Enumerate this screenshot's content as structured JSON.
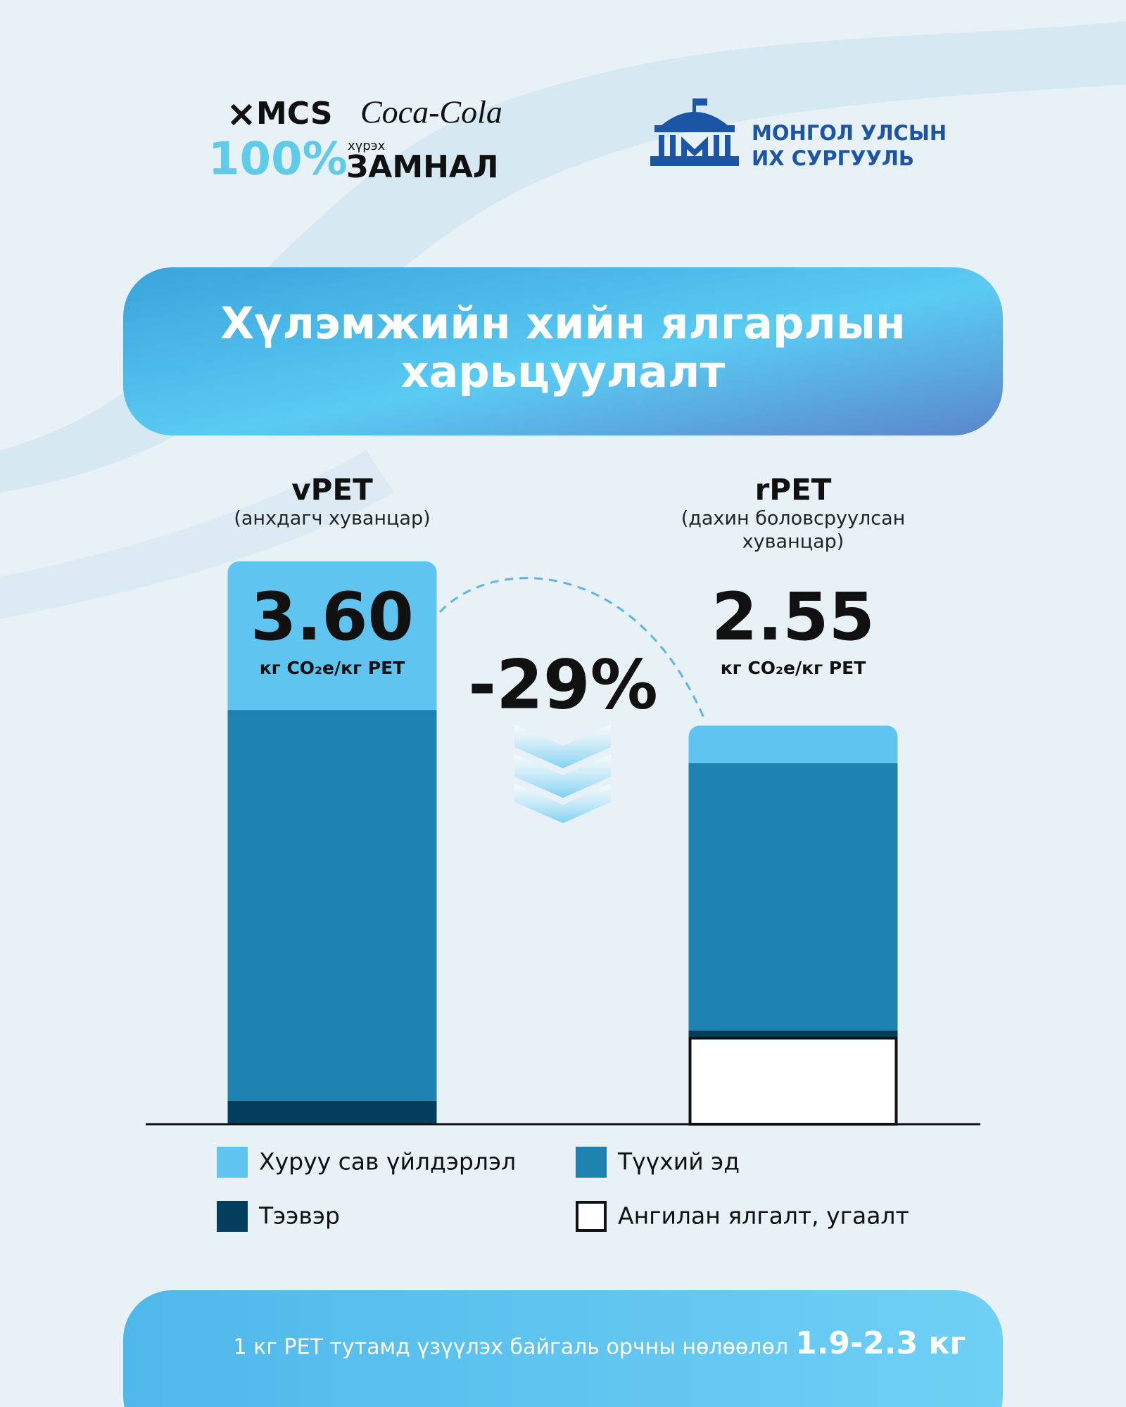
{
  "header": {
    "logo_left": {
      "brand1": "MCS",
      "brand2": "Coca-Cola",
      "percent": "100%",
      "small": "хүрэх",
      "word": "ЗАМНАЛ"
    },
    "logo_right": {
      "line1": "МОНГОЛ УЛСЫН",
      "line2": "ИХ СУРГУУЛЬ"
    }
  },
  "chart_data": {
    "type": "bar",
    "stacked": true,
    "title": [
      "Хүлэмжийн хийн ялгарлын",
      "харьцуулалт"
    ],
    "categories": [
      "vPET",
      "rPET"
    ],
    "category_subtitles": [
      [
        "(анхдагч хуванцар)"
      ],
      [
        "(дахин боловсруулсан",
        "хуванцар)"
      ]
    ],
    "total_labels": [
      "3.60",
      "2.55"
    ],
    "unit": "кг CO₂e/кг PET",
    "change_label": "-29%",
    "series": [
      {
        "name": "Ангилан ялгалт, угаалт",
        "color": "#ffffff",
        "values": [
          0,
          0.56
        ]
      },
      {
        "name": "Тээвэр",
        "color": "#023f5c",
        "values": [
          0.15,
          0.04
        ]
      },
      {
        "name": "Түүхий эд",
        "color": "#1e82b0",
        "values": [
          2.5,
          1.71
        ]
      },
      {
        "name": "Хуруу сав үйлдэрлэл",
        "color": "#5fc4ef",
        "values": [
          0.95,
          0.24
        ]
      }
    ]
  },
  "footer": {
    "text": "1 кг PET тутамд үзүүлэх байгаль орчны нөлөөлөл",
    "highlight": "1.9-2.3 кг"
  }
}
